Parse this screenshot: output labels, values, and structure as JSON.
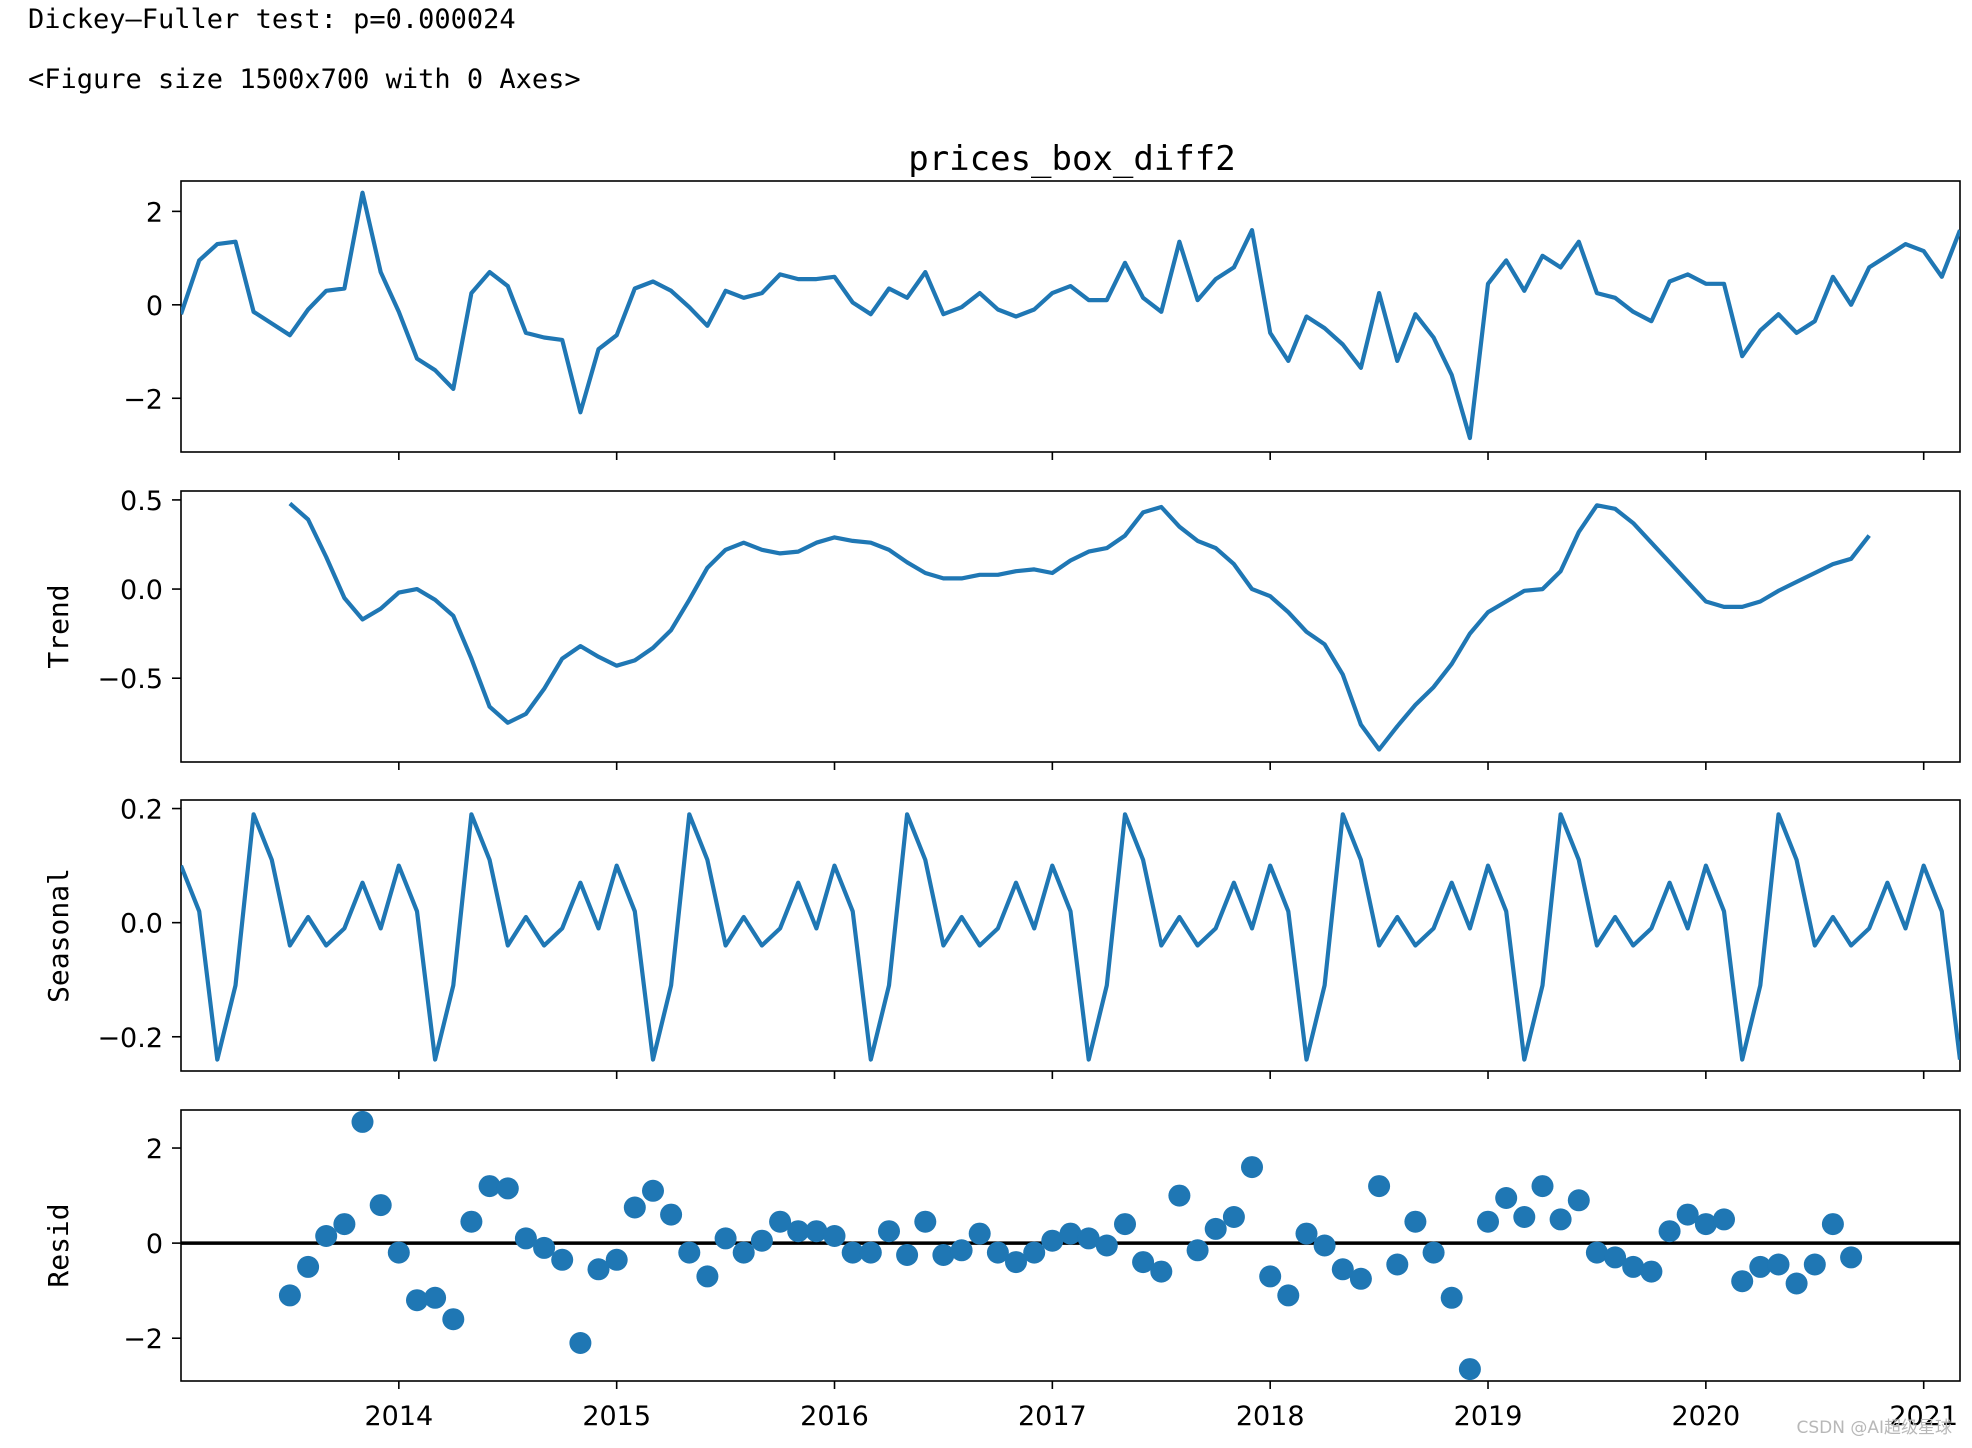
{
  "console": {
    "line1": "Dickey—Fuller test: p=0.000024",
    "line2": "<Figure size 1500x700 with 0 Axes>"
  },
  "watermark": "CSDN @AI超级星球",
  "chart_data": {
    "type": "line",
    "title": "prices_box_diff2",
    "x_start": "2013-01",
    "frequency": "monthly",
    "xlim": [
      "2013-01",
      "2021-03"
    ],
    "xticks": [
      "2014",
      "2015",
      "2016",
      "2017",
      "2018",
      "2019",
      "2020",
      "2021"
    ],
    "line_color": "#1f77b4",
    "panels": [
      {
        "ylabel": "",
        "type": "line",
        "ylim": [
          -3.15,
          2.65
        ],
        "yticks": [
          {
            "v": 2,
            "label": "2"
          },
          {
            "v": 0,
            "label": "0"
          },
          {
            "v": -2,
            "label": "−2"
          }
        ],
        "values": [
          -0.2,
          0.95,
          1.3,
          1.35,
          -0.15,
          -0.4,
          -0.65,
          -0.1,
          0.3,
          0.35,
          2.4,
          0.7,
          -0.15,
          -1.15,
          -1.4,
          -1.8,
          0.25,
          0.7,
          0.4,
          -0.6,
          -0.7,
          -0.75,
          -2.3,
          -0.95,
          -0.65,
          0.35,
          0.5,
          0.3,
          -0.05,
          -0.45,
          0.3,
          0.15,
          0.25,
          0.65,
          0.55,
          0.55,
          0.6,
          0.05,
          -0.2,
          0.35,
          0.15,
          0.7,
          -0.2,
          -0.05,
          0.25,
          -0.1,
          -0.25,
          -0.1,
          0.25,
          0.4,
          0.1,
          0.1,
          0.9,
          0.15,
          -0.15,
          1.35,
          0.1,
          0.55,
          0.8,
          1.6,
          -0.6,
          -1.2,
          -0.25,
          -0.5,
          -0.85,
          -1.35,
          0.25,
          -1.2,
          -0.2,
          -0.7,
          -1.5,
          -2.85,
          0.45,
          0.95,
          0.3,
          1.05,
          0.8,
          1.35,
          0.25,
          0.15,
          -0.15,
          -0.35,
          0.5,
          0.65,
          0.45,
          0.45,
          -1.1,
          -0.55,
          -0.2,
          -0.6,
          -0.35,
          0.6,
          0.0,
          0.8,
          1.05,
          1.3,
          1.15,
          0.6,
          1.6
        ]
      },
      {
        "ylabel": "Trend",
        "type": "line",
        "ylim": [
          -0.97,
          0.55
        ],
        "yticks": [
          {
            "v": 0.5,
            "label": "0.5"
          },
          {
            "v": 0.0,
            "label": "0.0"
          },
          {
            "v": -0.5,
            "label": "−0.5"
          }
        ],
        "values": [
          null,
          null,
          null,
          null,
          null,
          null,
          0.48,
          0.39,
          0.18,
          -0.05,
          -0.17,
          -0.11,
          -0.02,
          0.0,
          -0.06,
          -0.15,
          -0.39,
          -0.66,
          -0.75,
          -0.7,
          -0.56,
          -0.39,
          -0.32,
          -0.38,
          -0.43,
          -0.4,
          -0.33,
          -0.23,
          -0.06,
          0.12,
          0.22,
          0.26,
          0.22,
          0.2,
          0.21,
          0.26,
          0.29,
          0.27,
          0.26,
          0.22,
          0.15,
          0.09,
          0.06,
          0.06,
          0.08,
          0.08,
          0.1,
          0.11,
          0.09,
          0.16,
          0.21,
          0.23,
          0.3,
          0.43,
          0.46,
          0.35,
          0.27,
          0.23,
          0.14,
          0.0,
          -0.04,
          -0.13,
          -0.24,
          -0.31,
          -0.48,
          -0.76,
          -0.9,
          -0.77,
          -0.65,
          -0.55,
          -0.42,
          -0.25,
          -0.13,
          -0.07,
          -0.01,
          0.0,
          0.1,
          0.32,
          0.47,
          0.45,
          0.37,
          0.26,
          0.15,
          0.04,
          -0.07,
          -0.1,
          -0.1,
          -0.07,
          -0.01,
          0.04,
          0.09,
          0.14,
          0.17,
          0.3,
          null,
          null,
          null,
          null,
          null,
          null
        ]
      },
      {
        "ylabel": "Seasonal",
        "type": "line",
        "ylim": [
          -0.26,
          0.215
        ],
        "yticks": [
          {
            "v": 0.2,
            "label": "0.2"
          },
          {
            "v": 0.0,
            "label": "0.0"
          },
          {
            "v": -0.2,
            "label": "−0.2"
          }
        ],
        "values": [
          0.1,
          0.02,
          -0.24,
          -0.11,
          0.19,
          0.11,
          -0.04,
          0.01,
          -0.04,
          -0.01,
          0.07,
          -0.01,
          0.1,
          0.02,
          -0.24,
          -0.11,
          0.19,
          0.11,
          -0.04,
          0.01,
          -0.04,
          -0.01,
          0.07,
          -0.01,
          0.1,
          0.02,
          -0.24,
          -0.11,
          0.19,
          0.11,
          -0.04,
          0.01,
          -0.04,
          -0.01,
          0.07,
          -0.01,
          0.1,
          0.02,
          -0.24,
          -0.11,
          0.19,
          0.11,
          -0.04,
          0.01,
          -0.04,
          -0.01,
          0.07,
          -0.01,
          0.1,
          0.02,
          -0.24,
          -0.11,
          0.19,
          0.11,
          -0.04,
          0.01,
          -0.04,
          -0.01,
          0.07,
          -0.01,
          0.1,
          0.02,
          -0.24,
          -0.11,
          0.19,
          0.11,
          -0.04,
          0.01,
          -0.04,
          -0.01,
          0.07,
          -0.01,
          0.1,
          0.02,
          -0.24,
          -0.11,
          0.19,
          0.11,
          -0.04,
          0.01,
          -0.04,
          -0.01,
          0.07,
          -0.01,
          0.1,
          0.02,
          -0.24,
          -0.11,
          0.19,
          0.11,
          -0.04,
          0.01,
          -0.04,
          -0.01,
          0.07,
          -0.01,
          0.1,
          0.02,
          -0.24
        ]
      },
      {
        "ylabel": "Resid",
        "type": "scatter",
        "baseline": 0,
        "ylim": [
          -2.9,
          2.8
        ],
        "yticks": [
          {
            "v": 2,
            "label": "2"
          },
          {
            "v": 0,
            "label": "0"
          },
          {
            "v": -2,
            "label": "−2"
          }
        ],
        "values": [
          null,
          null,
          null,
          null,
          null,
          null,
          -1.1,
          -0.5,
          0.15,
          0.4,
          2.55,
          0.8,
          -0.2,
          -1.2,
          -1.15,
          -1.6,
          0.45,
          1.2,
          1.15,
          0.1,
          -0.1,
          -0.35,
          -2.1,
          -0.55,
          -0.35,
          0.75,
          1.1,
          0.6,
          -0.2,
          -0.7,
          0.1,
          -0.2,
          0.05,
          0.45,
          0.25,
          0.25,
          0.15,
          -0.2,
          -0.2,
          0.25,
          -0.25,
          0.45,
          -0.25,
          -0.15,
          0.2,
          -0.2,
          -0.4,
          -0.2,
          0.05,
          0.2,
          0.1,
          -0.05,
          0.4,
          -0.4,
          -0.6,
          1.0,
          -0.15,
          0.3,
          0.55,
          1.6,
          -0.7,
          -1.1,
          0.2,
          -0.05,
          -0.55,
          -0.75,
          1.2,
          -0.45,
          0.45,
          -0.2,
          -1.15,
          -2.65,
          0.45,
          0.95,
          0.55,
          1.2,
          0.5,
          0.9,
          -0.2,
          -0.3,
          -0.5,
          -0.6,
          0.25,
          0.6,
          0.4,
          0.5,
          -0.8,
          -0.5,
          -0.45,
          -0.85,
          -0.45,
          0.4,
          -0.3,
          null,
          null,
          null,
          null,
          null,
          null
        ]
      }
    ]
  }
}
